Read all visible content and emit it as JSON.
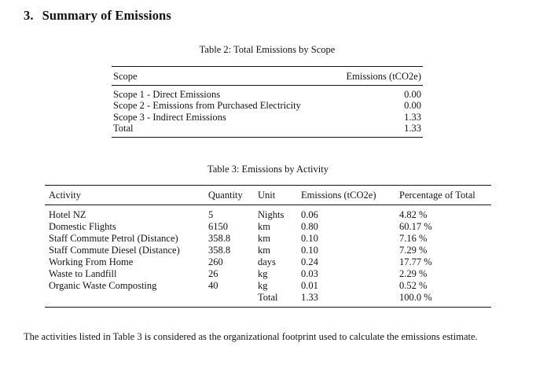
{
  "colors": {
    "text": "#141414",
    "background": "#ffffff",
    "rule": "#141414"
  },
  "section": {
    "number": "3.",
    "title": "Summary of Emissions"
  },
  "table2": {
    "caption": "Table 2: Total Emissions by Scope",
    "columns": [
      "Scope",
      "Emissions (tCO2e)"
    ],
    "rows": [
      [
        "Scope 1 - Direct Emissions",
        "0.00"
      ],
      [
        "Scope 2 - Emissions from Purchased Electricity",
        "0.00"
      ],
      [
        "Scope 3 - Indirect Emissions",
        "1.33"
      ],
      [
        "Total",
        "1.33"
      ]
    ]
  },
  "table3": {
    "caption": "Table 3: Emissions by Activity",
    "columns": [
      "Activity",
      "Quantity",
      "Unit",
      "Emissions (tCO2e)",
      "Percentage of Total"
    ],
    "rows": [
      [
        "Hotel NZ",
        "5",
        "Nights",
        "0.06",
        "4.82 %"
      ],
      [
        "Domestic Flights",
        "6150",
        "km",
        "0.80",
        "60.17 %"
      ],
      [
        "Staff Commute Petrol (Distance)",
        "358.8",
        "km",
        "0.10",
        "7.16 %"
      ],
      [
        "Staff Commute Diesel (Distance)",
        "358.8",
        "km",
        "0.10",
        "7.29 %"
      ],
      [
        "Working From Home",
        "260",
        "days",
        "0.24",
        "17.77 %"
      ],
      [
        "Waste to Landfill",
        "26",
        "kg",
        "0.03",
        "2.29 %"
      ],
      [
        "Organic Waste Composting",
        "40",
        "kg",
        "0.01",
        "0.52 %"
      ],
      [
        "",
        "",
        "Total",
        "1.33",
        "100.0 %"
      ]
    ]
  },
  "paragraph": {
    "text": "The activities listed in Table 3 is considered as the organizational footprint used to calculate the emissions estimate."
  }
}
